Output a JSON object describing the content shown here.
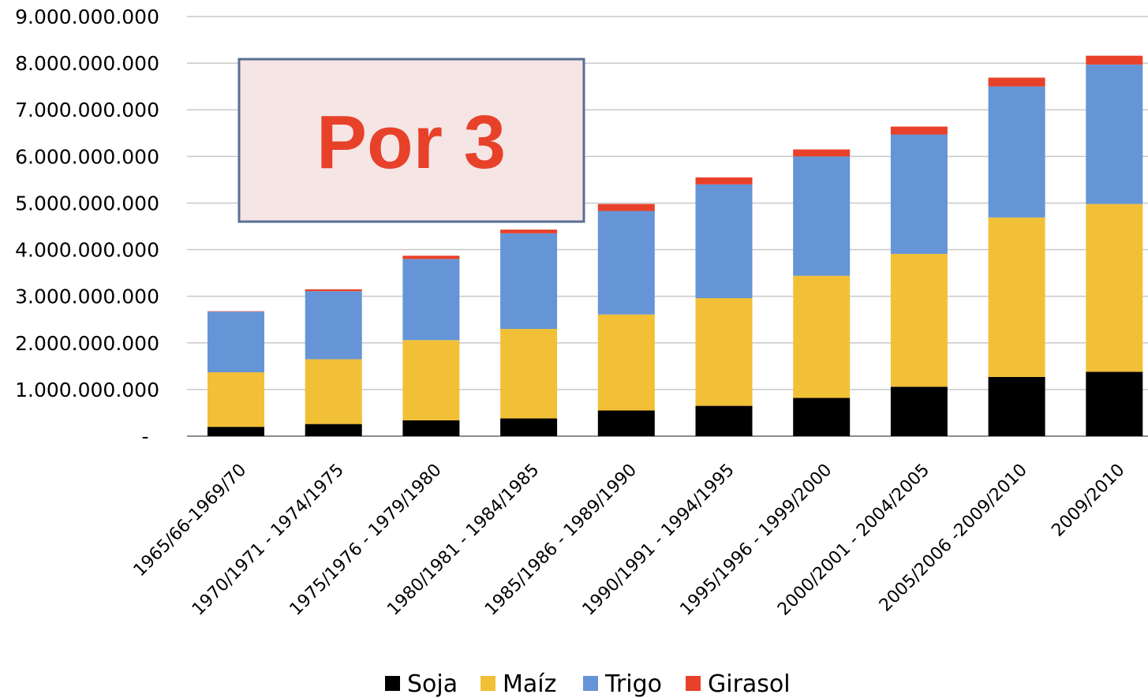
{
  "chart_data": {
    "type": "bar",
    "stacked": true,
    "title": "",
    "xlabel": "",
    "ylabel": "",
    "ylim": [
      0,
      9000000000
    ],
    "yticks": [
      {
        "value": 0,
        "label": "-"
      },
      {
        "value": 1000000000,
        "label": "1.000.000.000"
      },
      {
        "value": 2000000000,
        "label": "2.000.000.000"
      },
      {
        "value": 3000000000,
        "label": "3.000.000.000"
      },
      {
        "value": 4000000000,
        "label": "4.000.000.000"
      },
      {
        "value": 5000000000,
        "label": "5.000.000.000"
      },
      {
        "value": 6000000000,
        "label": "6.000.000.000"
      },
      {
        "value": 7000000000,
        "label": "7.000.000.000"
      },
      {
        "value": 8000000000,
        "label": "8.000.000.000"
      },
      {
        "value": 9000000000,
        "label": "9.000.000.000"
      }
    ],
    "grid": true,
    "legend_position": "bottom",
    "categories": [
      "1965/66-1969/70",
      "1970/1971 - 1974/1975",
      "1975/1976 - 1979/1980",
      "1980/1981 - 1984/1985",
      "1985/1986 - 1989/1990",
      "1990/1991 - 1994/1995",
      "1995/1996 - 1999/2000",
      "2000/2001 - 2004/2005",
      "2005/2006 -2009/2010",
      "2009/2010"
    ],
    "series": [
      {
        "name": "Soja",
        "color": "#000000",
        "values": [
          200000000,
          260000000,
          340000000,
          380000000,
          550000000,
          650000000,
          820000000,
          1060000000,
          1270000000,
          1380000000
        ]
      },
      {
        "name": "Maíz",
        "color": "#f2c037",
        "values": [
          1170000000,
          1390000000,
          1720000000,
          1920000000,
          2060000000,
          2310000000,
          2620000000,
          2850000000,
          3420000000,
          3600000000
        ]
      },
      {
        "name": "Trigo",
        "color": "#6595d6",
        "values": [
          1300000000,
          1460000000,
          1740000000,
          2050000000,
          2220000000,
          2440000000,
          2560000000,
          2560000000,
          2810000000,
          2990000000
        ]
      },
      {
        "name": "Girasol",
        "color": "#e8412a",
        "values": [
          10000000,
          40000000,
          70000000,
          80000000,
          150000000,
          150000000,
          150000000,
          170000000,
          190000000,
          190000000
        ]
      }
    ],
    "annotation": {
      "text": "Por 3",
      "text_color": "#e8412a",
      "fill": "#f5e5e5",
      "border": "#5a6f93"
    }
  }
}
